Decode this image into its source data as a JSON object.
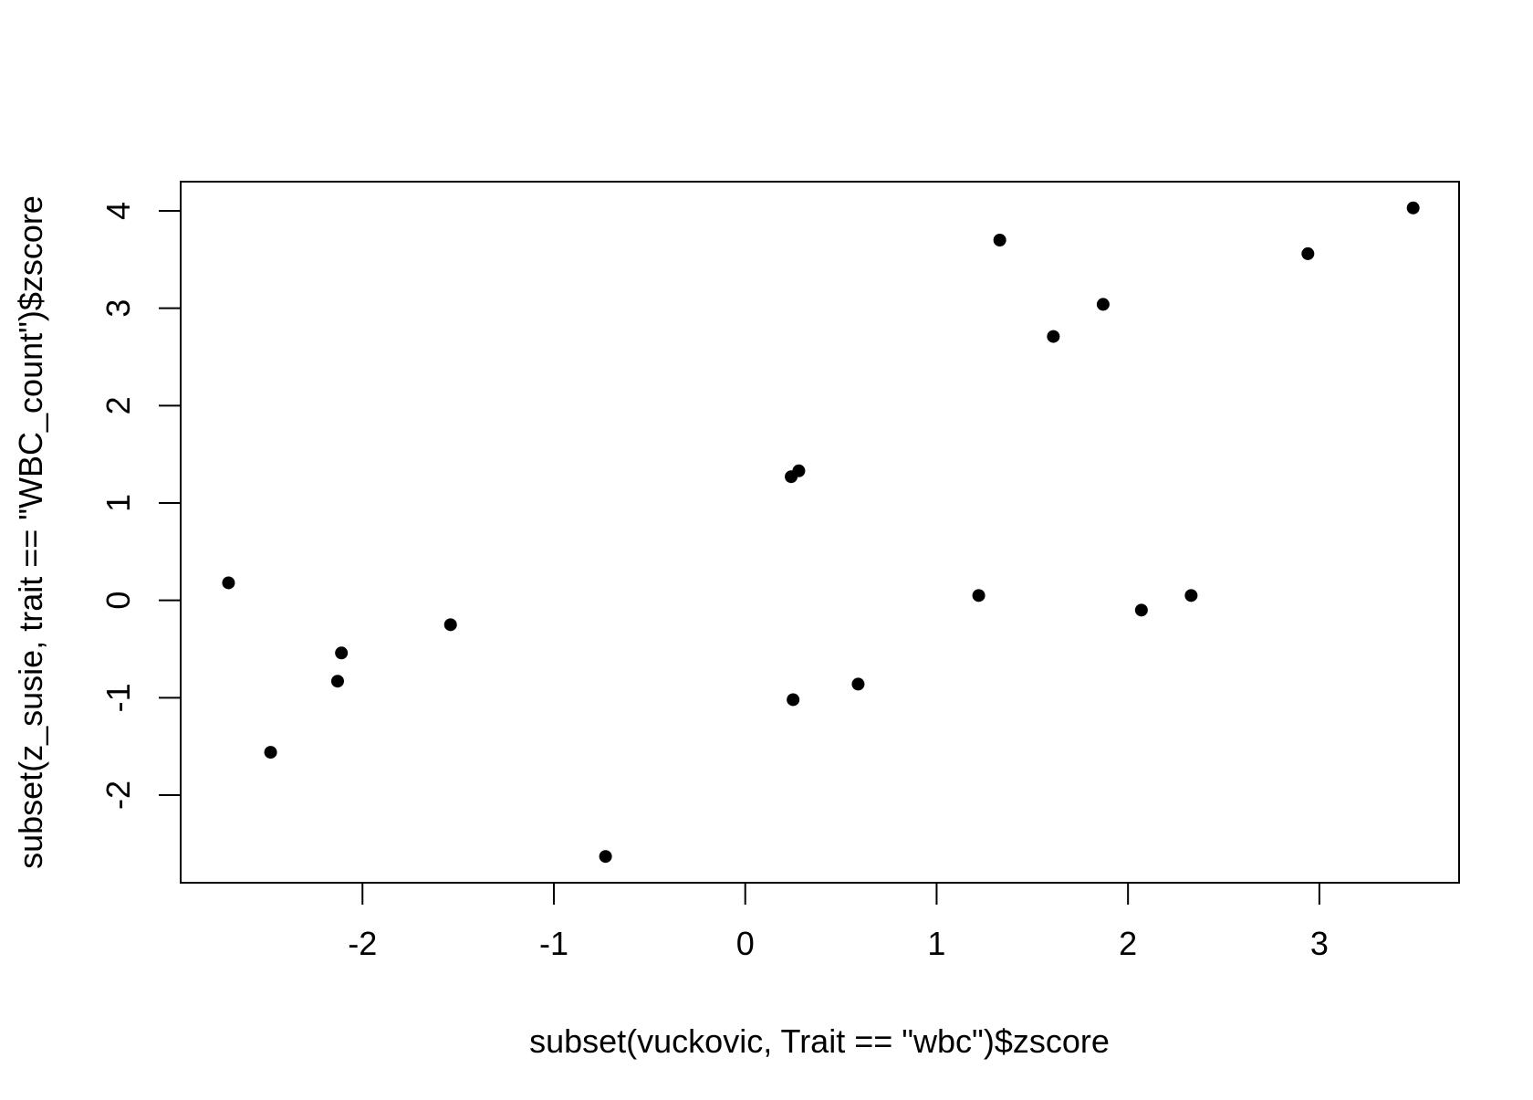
{
  "chart_data": {
    "type": "scatter",
    "title": "",
    "xlabel": "subset(vuckovic, Trait == \"wbc\")$zscore",
    "ylabel": "subset(z_susie, trait == \"WBC_count\")$zscore",
    "xlim": [
      -2.95,
      3.73
    ],
    "ylim": [
      -2.9,
      4.3
    ],
    "xticks": [
      -2,
      -1,
      0,
      1,
      2,
      3
    ],
    "yticks": [
      -2,
      -1,
      0,
      1,
      2,
      3,
      4
    ],
    "xtick_labels": [
      "-2",
      "-1",
      "0",
      "1",
      "2",
      "3"
    ],
    "ytick_labels": [
      "-2",
      "-1",
      "0",
      "1",
      "2",
      "3",
      "4"
    ],
    "grid": false,
    "legend": "none",
    "point_color": "#000000",
    "points": [
      {
        "x": -2.7,
        "y": 0.18
      },
      {
        "x": -2.48,
        "y": -1.56
      },
      {
        "x": -2.13,
        "y": -0.83
      },
      {
        "x": -2.11,
        "y": -0.54
      },
      {
        "x": -1.54,
        "y": -0.25
      },
      {
        "x": -0.73,
        "y": -2.63
      },
      {
        "x": 0.24,
        "y": 1.27
      },
      {
        "x": 0.28,
        "y": 1.33
      },
      {
        "x": 0.25,
        "y": -1.02
      },
      {
        "x": 0.59,
        "y": -0.86
      },
      {
        "x": 1.22,
        "y": 0.05
      },
      {
        "x": 1.33,
        "y": 3.7
      },
      {
        "x": 1.61,
        "y": 2.71
      },
      {
        "x": 1.87,
        "y": 3.04
      },
      {
        "x": 2.07,
        "y": -0.1
      },
      {
        "x": 2.33,
        "y": 0.05
      },
      {
        "x": 2.94,
        "y": 3.56
      },
      {
        "x": 3.49,
        "y": 4.03
      }
    ]
  }
}
